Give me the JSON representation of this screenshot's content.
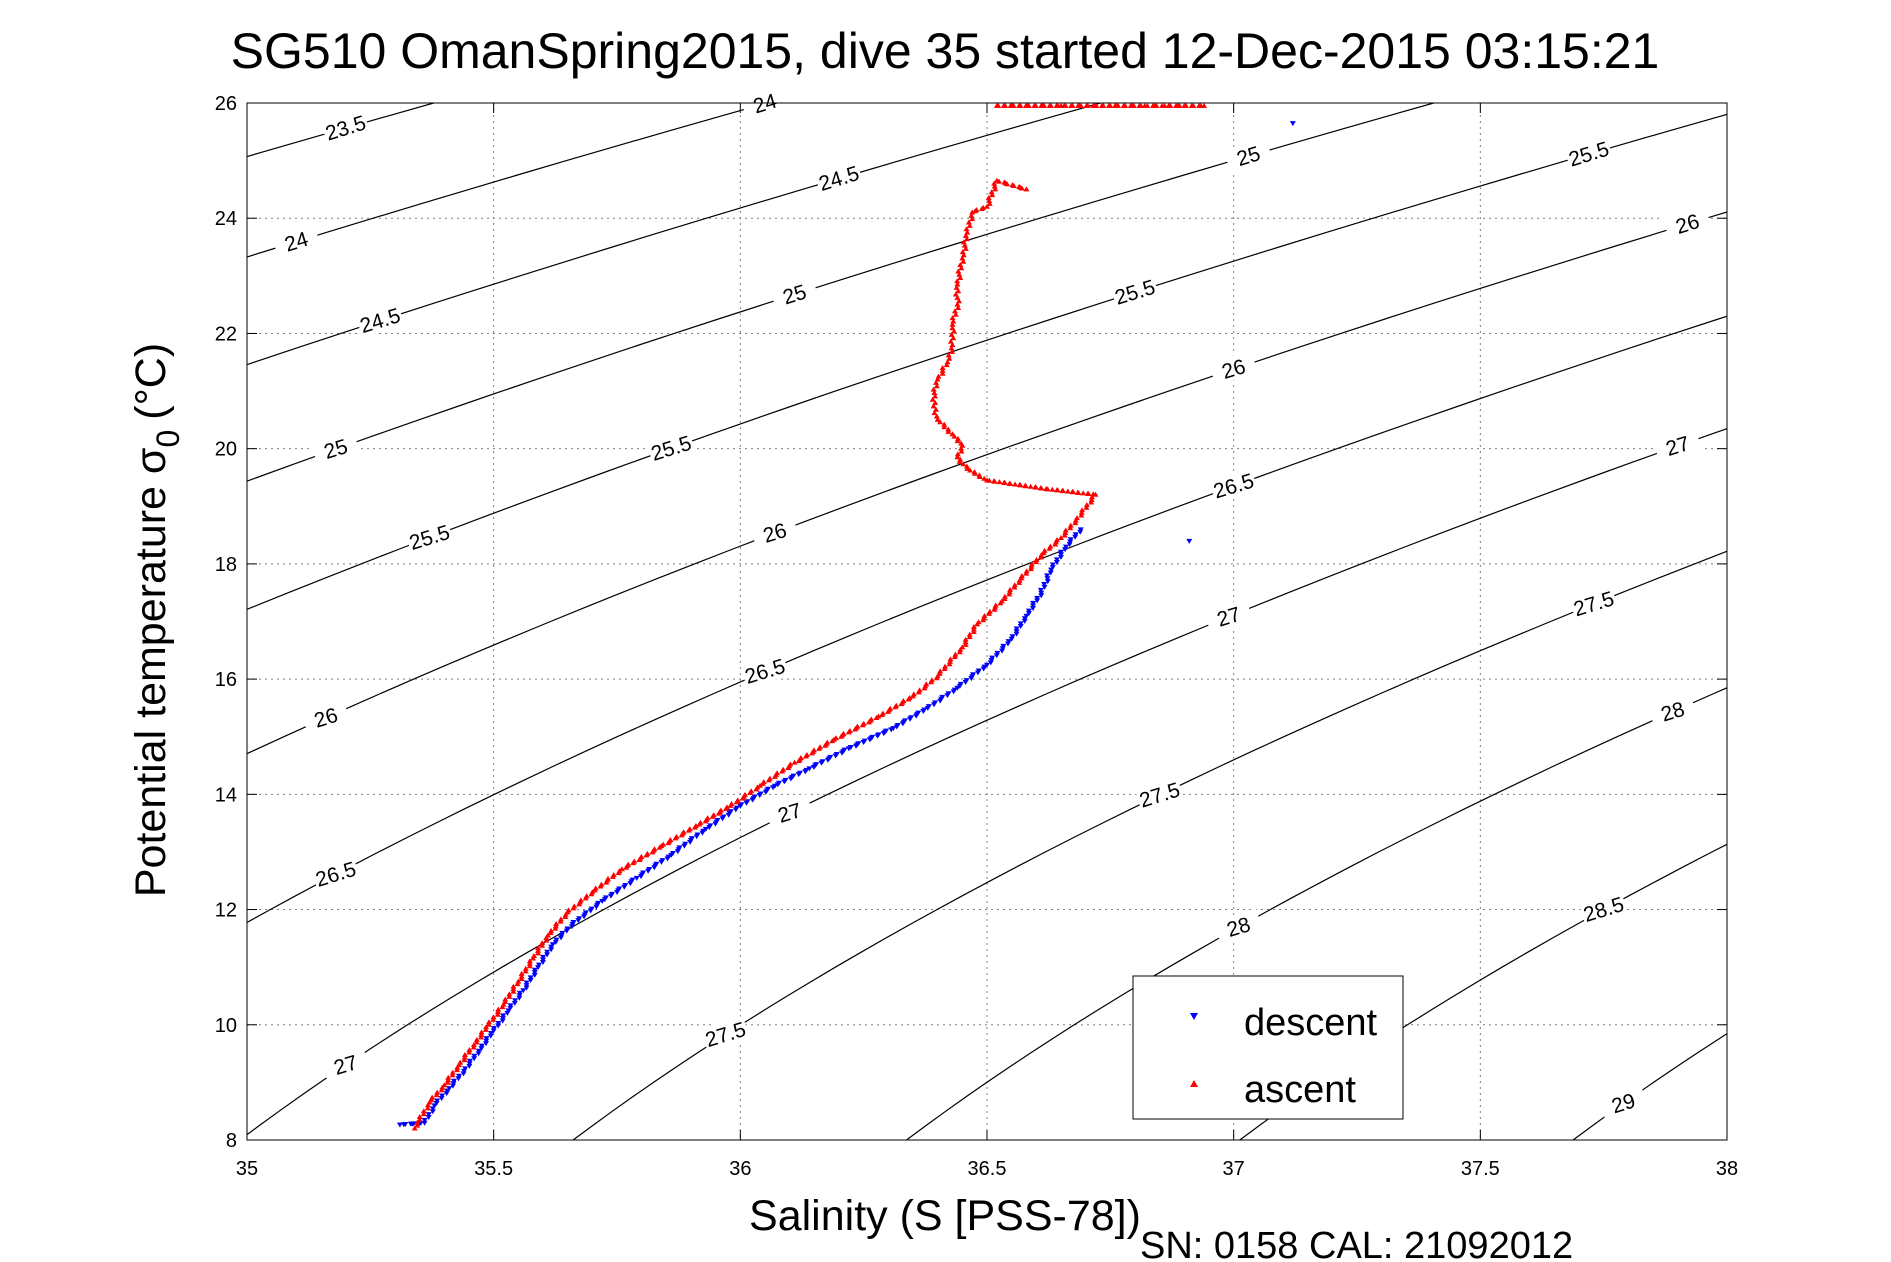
{
  "chart_data": {
    "type": "scatter",
    "title": "SG510 OmanSpring2015, dive 35 started 12-Dec-2015 03:15:21",
    "xlabel": "Salinity (S [PSS-78])",
    "ylabel_main": "Potential temperature σ",
    "ylabel_sub": "0",
    "ylabel_unit": "(°C)",
    "footer": "SN: 0158  CAL: 21092012",
    "xlim": [
      35,
      38
    ],
    "ylim": [
      8,
      26
    ],
    "x_ticks": [
      35,
      35.5,
      36,
      36.5,
      37,
      37.5,
      38
    ],
    "x_tick_labels": [
      "35",
      "35.5",
      "36",
      "36.5",
      "37",
      "37.5",
      "38"
    ],
    "y_ticks": [
      8,
      10,
      12,
      14,
      16,
      18,
      20,
      22,
      24,
      26
    ],
    "y_tick_labels": [
      "8",
      "10",
      "12",
      "14",
      "16",
      "18",
      "20",
      "22",
      "24",
      "26"
    ],
    "grid": true,
    "legend": {
      "position": "bottom-right",
      "entries": [
        {
          "label": "descent",
          "color": "#0000ff",
          "marker": "triangle-down"
        },
        {
          "label": "ascent",
          "color": "#ff0000",
          "marker": "triangle-up"
        }
      ]
    },
    "density_contours": [
      {
        "label": "23.5",
        "level": 23.5
      },
      {
        "label": "24",
        "level": 24
      },
      {
        "label": "24.5",
        "level": 24.5
      },
      {
        "label": "25",
        "level": 25
      },
      {
        "label": "25.5",
        "level": 25.5
      },
      {
        "label": "26",
        "level": 26
      },
      {
        "label": "26.5",
        "level": 26.5
      },
      {
        "label": "27",
        "level": 27
      },
      {
        "label": "27.5",
        "level": 27.5
      },
      {
        "label": "28",
        "level": 28
      },
      {
        "label": "28.5",
        "level": 28.5
      },
      {
        "label": "29",
        "level": 29
      }
    ],
    "series": [
      {
        "name": "descent",
        "color": "#0000ff",
        "points": [
          [
            35.31,
            8.27
          ],
          [
            35.36,
            8.3
          ],
          [
            35.38,
            8.6
          ],
          [
            35.41,
            8.9
          ],
          [
            35.44,
            9.2
          ],
          [
            35.47,
            9.55
          ],
          [
            35.5,
            9.9
          ],
          [
            35.53,
            10.25
          ],
          [
            35.56,
            10.6
          ],
          [
            35.59,
            11.0
          ],
          [
            35.62,
            11.4
          ],
          [
            35.66,
            11.75
          ],
          [
            35.72,
            12.15
          ],
          [
            35.79,
            12.55
          ],
          [
            35.86,
            12.95
          ],
          [
            35.93,
            13.4
          ],
          [
            36.0,
            13.8
          ],
          [
            36.07,
            14.15
          ],
          [
            36.14,
            14.45
          ],
          [
            36.22,
            14.8
          ],
          [
            36.31,
            15.15
          ],
          [
            36.38,
            15.5
          ],
          [
            36.44,
            15.85
          ],
          [
            36.5,
            16.25
          ],
          [
            36.55,
            16.7
          ],
          [
            36.58,
            17.1
          ],
          [
            36.61,
            17.5
          ],
          [
            36.63,
            17.9
          ],
          [
            36.66,
            18.3
          ],
          [
            36.69,
            18.6
          ],
          [
            36.91,
            18.4
          ],
          [
            37.12,
            25.65
          ]
        ]
      },
      {
        "name": "ascent",
        "color": "#ff0000",
        "points": [
          [
            35.34,
            8.2
          ],
          [
            35.35,
            8.35
          ],
          [
            35.37,
            8.65
          ],
          [
            35.4,
            8.95
          ],
          [
            35.43,
            9.3
          ],
          [
            35.46,
            9.65
          ],
          [
            35.49,
            10.0
          ],
          [
            35.52,
            10.35
          ],
          [
            35.55,
            10.75
          ],
          [
            35.58,
            11.15
          ],
          [
            35.61,
            11.55
          ],
          [
            35.65,
            11.95
          ],
          [
            35.7,
            12.3
          ],
          [
            35.76,
            12.7
          ],
          [
            35.84,
            13.1
          ],
          [
            35.91,
            13.45
          ],
          [
            35.98,
            13.8
          ],
          [
            36.04,
            14.15
          ],
          [
            36.11,
            14.55
          ],
          [
            36.19,
            14.95
          ],
          [
            36.28,
            15.35
          ],
          [
            36.35,
            15.7
          ],
          [
            36.4,
            16.05
          ],
          [
            36.45,
            16.55
          ],
          [
            36.48,
            16.95
          ],
          [
            36.53,
            17.35
          ],
          [
            36.57,
            17.75
          ],
          [
            36.61,
            18.15
          ],
          [
            36.65,
            18.45
          ],
          [
            36.68,
            18.75
          ],
          [
            36.72,
            19.2
          ],
          [
            36.62,
            19.3
          ],
          [
            36.5,
            19.45
          ],
          [
            36.46,
            19.65
          ],
          [
            36.44,
            19.85
          ],
          [
            36.45,
            20.05
          ],
          [
            36.43,
            20.25
          ],
          [
            36.4,
            20.5
          ],
          [
            36.39,
            20.85
          ],
          [
            36.4,
            21.2
          ],
          [
            36.42,
            21.5
          ],
          [
            36.43,
            21.8
          ],
          [
            36.43,
            22.15
          ],
          [
            36.44,
            22.5
          ],
          [
            36.44,
            22.85
          ],
          [
            36.45,
            23.3
          ],
          [
            36.46,
            23.75
          ],
          [
            36.47,
            24.1
          ],
          [
            36.5,
            24.2
          ],
          [
            36.52,
            24.65
          ],
          [
            36.58,
            24.5
          ],
          [
            36.52,
            25.95
          ],
          [
            36.65,
            25.95
          ],
          [
            36.75,
            25.95
          ],
          [
            36.82,
            25.95
          ],
          [
            36.86,
            25.95
          ],
          [
            36.9,
            25.95
          ],
          [
            36.94,
            25.95
          ]
        ]
      }
    ]
  }
}
